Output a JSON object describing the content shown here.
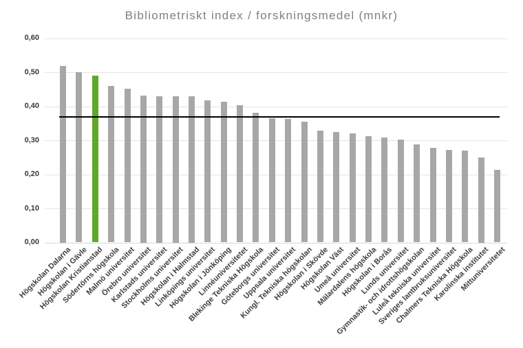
{
  "chart_data": {
    "type": "bar",
    "title": "Bibliometriskt index / forskningsmedel  (mnkr)",
    "xlabel": "",
    "ylabel": "",
    "ylim": [
      0,
      0.6
    ],
    "ytick_step": 0.1,
    "ytick_labels": [
      "0,00",
      "0,10",
      "0,20",
      "0,30",
      "0,40",
      "0,50",
      "0,60"
    ],
    "grid": true,
    "legend": "none",
    "reference_line_value": 0.37,
    "highlight_category": "Högskolan Kristianstad",
    "highlight_index": 2,
    "colors": {
      "bar": "#a7a7a7",
      "highlight": "#60a829",
      "reference_line": "#000000",
      "gridline": "#e4e4e4",
      "axis_line": "#d7d7d7",
      "title_text": "#7f7f7f",
      "tick_text": "#3f3f3f",
      "background": "#ffffff"
    },
    "categories": [
      "Högskolan Dalarna",
      "Högskolan i Gävle",
      "Högskolan Kristianstad",
      "Södertörns högskola",
      "Malmö universitet",
      "Örebro universitet",
      "Karlstads universitet",
      "Stockholms universitet",
      "Högskolan i Halmstad",
      "Linköpings universitet",
      "Högskolan i Jönköping",
      "Linnéuniversitetet",
      "Blekinge Tekniska Högskola",
      "Göteborgs universitet",
      "Uppsala universitet",
      "Kungl. Tekniska högskolan",
      "Högskolan i Skövde",
      "Högskolan Väst",
      "Umeå universitet",
      "Mälardalens högskola",
      "Högskolan i Borås",
      "Lunds universitet",
      "Gymnastik- och idrottshögskolan",
      "Luleå tekniska universitet",
      "Sveriges lantbruksuniversitet",
      "Chalmers Tekniska Högskola",
      "Karolinska institutet",
      "Mittuniversitetet"
    ],
    "values": [
      0.52,
      0.5,
      0.49,
      0.46,
      0.452,
      0.432,
      0.43,
      0.43,
      0.43,
      0.418,
      0.413,
      0.403,
      0.382,
      0.365,
      0.364,
      0.356,
      0.328,
      0.324,
      0.32,
      0.312,
      0.308,
      0.302,
      0.289,
      0.279,
      0.273,
      0.271,
      0.251,
      0.213
    ]
  }
}
